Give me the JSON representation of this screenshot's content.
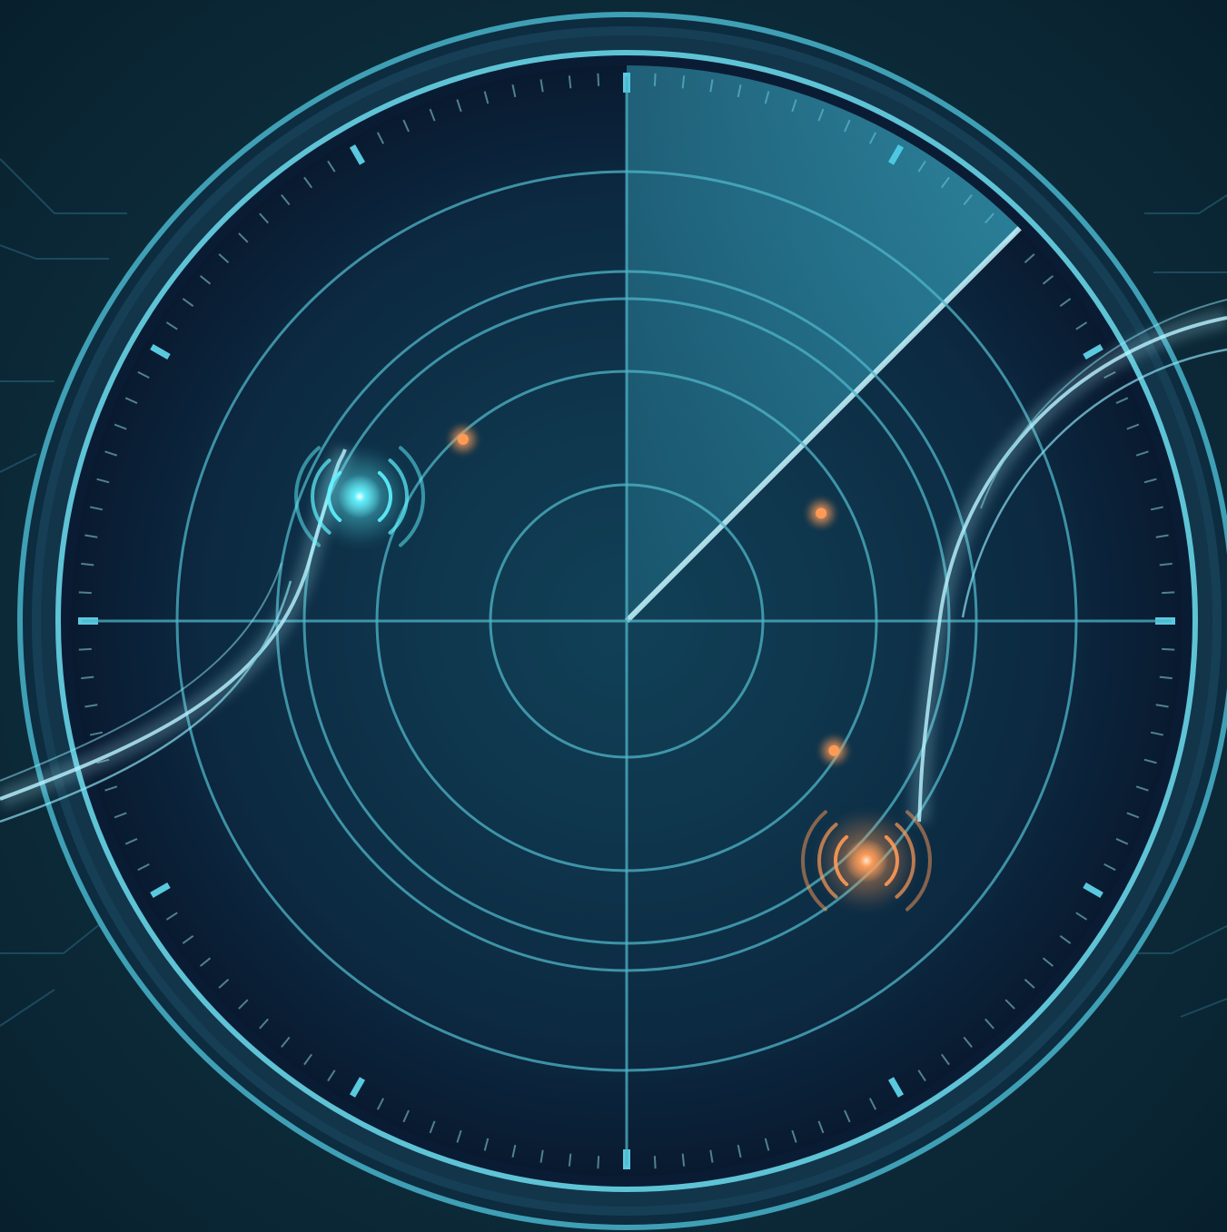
{
  "colors": {
    "background": "#0b2433",
    "background_glow": "#123a4c",
    "circuit": "#1f5468",
    "bezel_outer": "#5fc3d6",
    "bezel_dark": "#123347",
    "dial_face": "#0a1c33",
    "grid": "#4fb5c8",
    "tick": "#8fd3e0",
    "sweep": "#43c7e2",
    "sweep_edge": "#c8f6ff",
    "target_cyan": "#5ff3ff",
    "target_orange": "#ff9a55",
    "trail": "#b8f2ff"
  },
  "radar": {
    "ring_count": 6,
    "major_tick_count": 12,
    "minor_tick_count": 120,
    "sweep_bearing_deg": 45,
    "sweep_width_deg": 45
  },
  "targets": [
    {
      "name": "cyan-blip",
      "kind": "primary",
      "color": "cyan",
      "bearing_deg": 295,
      "range_fraction": 0.53
    },
    {
      "name": "orange-blip",
      "kind": "primary",
      "color": "orange",
      "bearing_deg": 135,
      "range_fraction": 0.61
    },
    {
      "name": "orange-echo-1",
      "kind": "echo",
      "color": "orange",
      "bearing_deg": 61,
      "range_fraction": 0.4
    },
    {
      "name": "orange-echo-2",
      "kind": "echo",
      "color": "orange",
      "bearing_deg": 318,
      "range_fraction": 0.44
    },
    {
      "name": "orange-echo-3",
      "kind": "echo",
      "color": "orange",
      "bearing_deg": 122,
      "range_fraction": 0.44
    }
  ]
}
